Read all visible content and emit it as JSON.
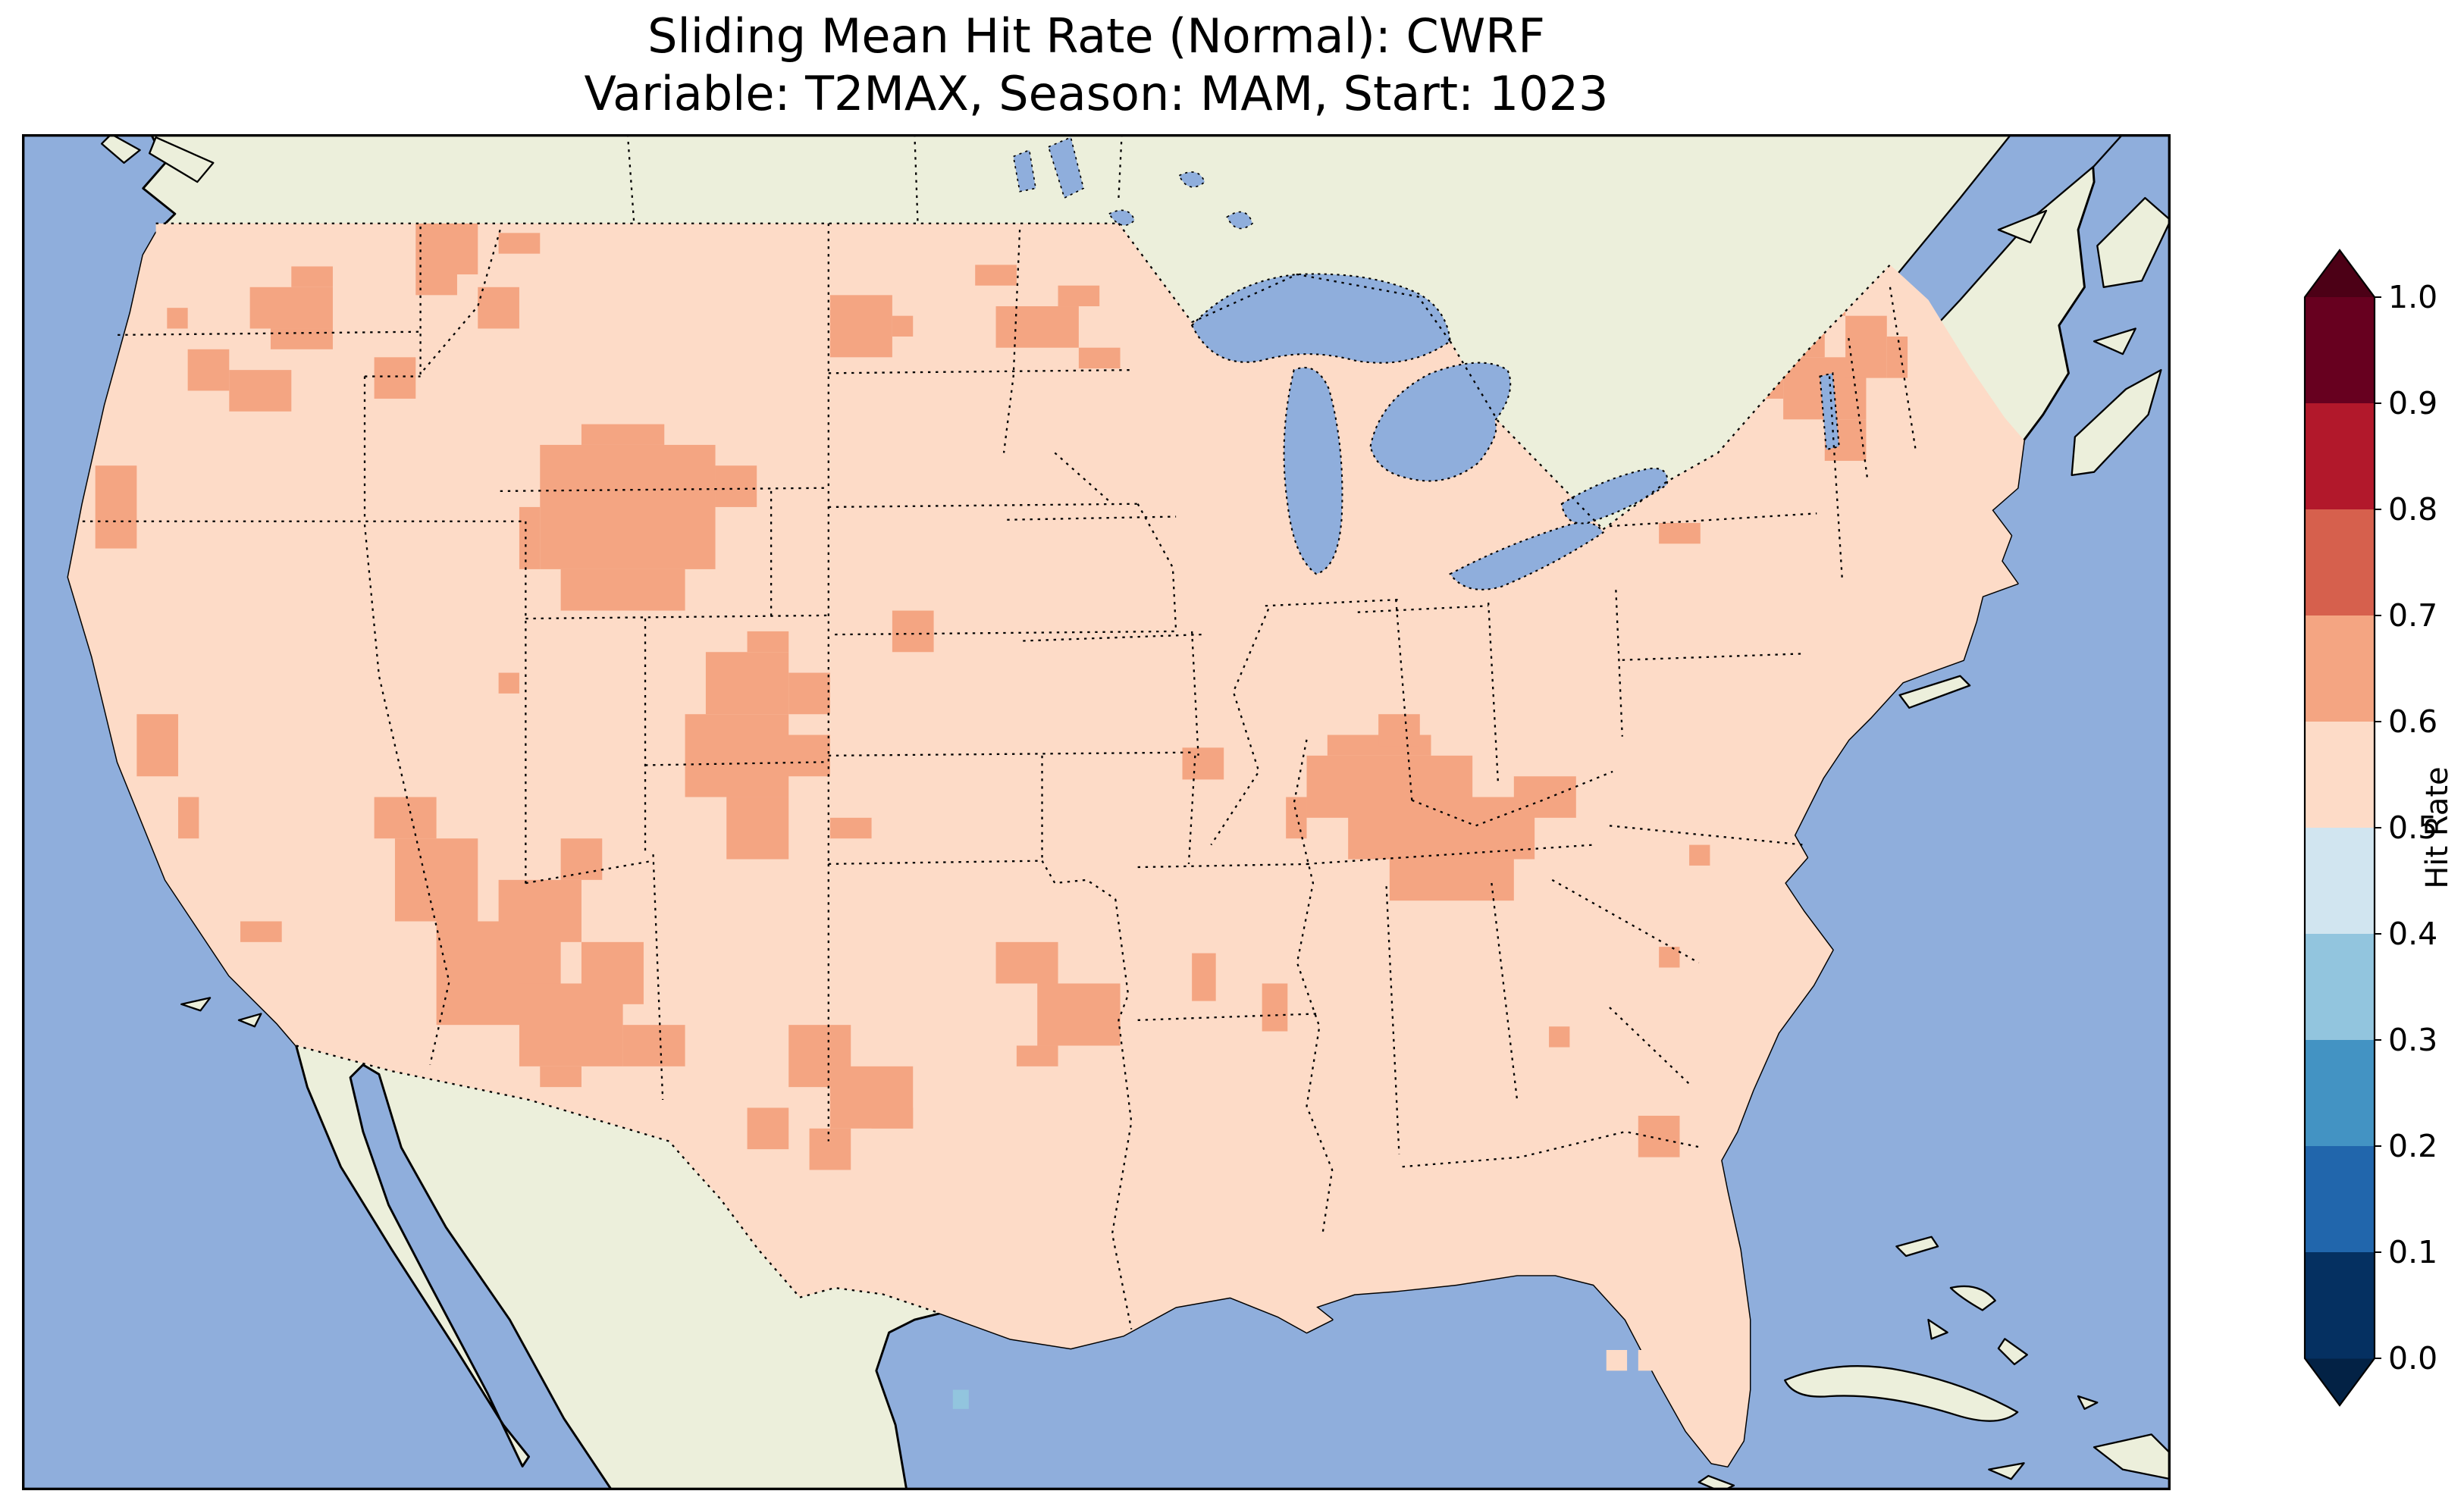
{
  "title": {
    "line1": "Sliding Mean Hit Rate (Normal): CWRF",
    "line2": "Variable: T2MAX, Season: MAM, Start: 1023"
  },
  "colorbar": {
    "label": "Hit Rate",
    "ticks": [
      "1.0",
      "0.9",
      "0.8",
      "0.7",
      "0.6",
      "0.5",
      "0.4",
      "0.3",
      "0.2",
      "0.1",
      "0.0"
    ],
    "bands_top_to_bottom": [
      "#67001f",
      "#b2182b",
      "#d6604d",
      "#f4a582",
      "#fddbc7",
      "#d1e5f0",
      "#92c5de",
      "#4393c3",
      "#2166ac",
      "#053061"
    ],
    "extend_over": "#4c0016",
    "extend_under": "#032245",
    "outline": "#000000"
  },
  "map_colors": {
    "ocean": "#8faedc",
    "land": "#ecefdb",
    "coastline": "#000000",
    "base_fill": "#fddbc7",
    "high_fill": "#f4a582",
    "pale_fill": "#fddbc7",
    "low_fill": "#92c5de",
    "border_line": "#000000"
  },
  "chart_data": {
    "type": "heatmap",
    "title": "Sliding Mean Hit Rate (Normal): CWRF",
    "subtitle": "Variable: T2MAX, Season: MAM, Start: 1023",
    "model": "CWRF",
    "variable": "T2MAX",
    "season": "MAM",
    "start": "1023",
    "region": "Contiguous United States (Lambert-conformal map, gridded cells)",
    "colorbar_label": "Hit Rate",
    "value_range": [
      0.0,
      1.0
    ],
    "bin_width": 0.1,
    "colormap": "RdBu reversed, 10 discrete bins, extended (arrows) at both ends",
    "dominant_bin": "0.5-0.6 (pale pink) over most of CONUS",
    "secondary_bin": "0.6-0.7 (salmon) in scattered clusters",
    "high_value_clusters": [
      "Pacific Northwest / eastern Washington",
      "Northern Idaho / western Montana",
      "Wyoming",
      "Utah - western Colorado",
      "Arizona - New Mexico",
      "West and central Texas",
      "Dakotas and western Minnesota",
      "Tennessee - Kentucky",
      "Upstate New York / northern New England",
      "Coastal California patches"
    ],
    "legend_position": "right vertical colorbar with triangular over/under extensions",
    "high_cells": [
      [
        143,
        96,
        52,
        26
      ],
      [
        156,
        122,
        39,
        13
      ],
      [
        104,
        135,
        26,
        26
      ],
      [
        130,
        148,
        39,
        26
      ],
      [
        91,
        109,
        13,
        13
      ],
      [
        169,
        83,
        26,
        13
      ],
      [
        247,
        49,
        39,
        39
      ],
      [
        247,
        88,
        26,
        13
      ],
      [
        286,
        96,
        26,
        26
      ],
      [
        221,
        140,
        26,
        26
      ],
      [
        299,
        62,
        26,
        13
      ],
      [
        325,
        195,
        110,
        78
      ],
      [
        351,
        182,
        52,
        13
      ],
      [
        338,
        273,
        78,
        26
      ],
      [
        312,
        234,
        13,
        39
      ],
      [
        435,
        208,
        26,
        26
      ],
      [
        507,
        101,
        39,
        39
      ],
      [
        546,
        114,
        13,
        13
      ],
      [
        611,
        108,
        52,
        26
      ],
      [
        650,
        95,
        26,
        13
      ],
      [
        663,
        134,
        26,
        13
      ],
      [
        598,
        82,
        26,
        13
      ],
      [
        546,
        299,
        26,
        26
      ],
      [
        429,
        325,
        52,
        39
      ],
      [
        416,
        364,
        65,
        52
      ],
      [
        442,
        416,
        39,
        39
      ],
      [
        455,
        312,
        26,
        13
      ],
      [
        481,
        338,
        26,
        26
      ],
      [
        468,
        377,
        39,
        26
      ],
      [
        299,
        338,
        13,
        13
      ],
      [
        46,
        208,
        26,
        52
      ],
      [
        72,
        364,
        26,
        39
      ],
      [
        98,
        416,
        13,
        26
      ],
      [
        137,
        494,
        26,
        13
      ],
      [
        221,
        416,
        39,
        26
      ],
      [
        234,
        442,
        52,
        52
      ],
      [
        260,
        494,
        78,
        65
      ],
      [
        299,
        468,
        52,
        39
      ],
      [
        312,
        533,
        65,
        52
      ],
      [
        351,
        507,
        39,
        39
      ],
      [
        338,
        442,
        26,
        26
      ],
      [
        377,
        559,
        39,
        26
      ],
      [
        325,
        585,
        26,
        13
      ],
      [
        481,
        559,
        39,
        39
      ],
      [
        507,
        585,
        52,
        39
      ],
      [
        494,
        624,
        26,
        26
      ],
      [
        533,
        611,
        26,
        13
      ],
      [
        455,
        611,
        26,
        26
      ],
      [
        611,
        507,
        39,
        26
      ],
      [
        637,
        533,
        52,
        39
      ],
      [
        624,
        572,
        26,
        13
      ],
      [
        507,
        429,
        26,
        13
      ],
      [
        806,
        390,
        104,
        39
      ],
      [
        832,
        416,
        117,
        39
      ],
      [
        858,
        455,
        78,
        26
      ],
      [
        819,
        377,
        65,
        13
      ],
      [
        936,
        403,
        39,
        26
      ],
      [
        793,
        416,
        13,
        26
      ],
      [
        728,
        385,
        26,
        20
      ],
      [
        851,
        364,
        26,
        20
      ],
      [
        1066,
        127,
        39,
        39
      ],
      [
        1092,
        114,
        39,
        26
      ],
      [
        1105,
        140,
        52,
        39
      ],
      [
        1131,
        179,
        26,
        26
      ],
      [
        1144,
        114,
        26,
        39
      ],
      [
        1170,
        127,
        13,
        26
      ],
      [
        1118,
        101,
        26,
        13
      ],
      [
        1027,
        244,
        26,
        13
      ],
      [
        734,
        514,
        15,
        30
      ],
      [
        778,
        533,
        16,
        30
      ],
      [
        1014,
        616,
        26,
        26
      ],
      [
        958,
        560,
        13,
        13
      ],
      [
        1046,
        446,
        13,
        13
      ],
      [
        1027,
        510,
        13,
        13
      ]
    ],
    "pale_cells": [
      [
        994,
        763,
        13,
        13
      ],
      [
        1014,
        763,
        13,
        13
      ]
    ],
    "low_cells": [
      [
        584,
        788,
        10,
        12
      ]
    ]
  }
}
